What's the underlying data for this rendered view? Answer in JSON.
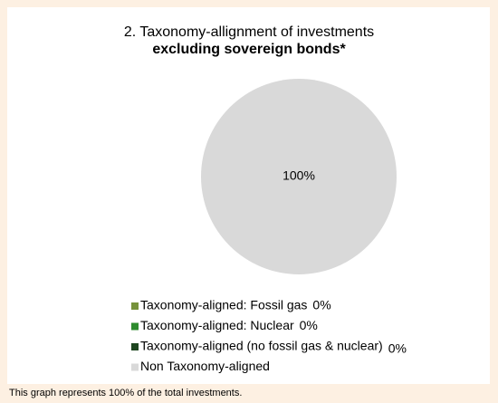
{
  "chart_data": {
    "type": "pie",
    "title": "2. Taxonomy-allignment of investments",
    "subtitle": "excluding sovereign bonds*",
    "categories": [
      "Taxonomy-aligned: Fossil gas",
      "Taxonomy-aligned: Nuclear",
      "Taxonomy-aligned (no fossil gas & nuclear)",
      "Non Taxonomy-aligned"
    ],
    "values": [
      0,
      0,
      0,
      100
    ],
    "value_labels": [
      "0%",
      "0%",
      "0%",
      "100%"
    ],
    "colors": [
      "#76923c",
      "#2e8b2e",
      "#1e4620",
      "#d9d9d9"
    ],
    "footnote": "This graph represents 100% of the total investments."
  }
}
